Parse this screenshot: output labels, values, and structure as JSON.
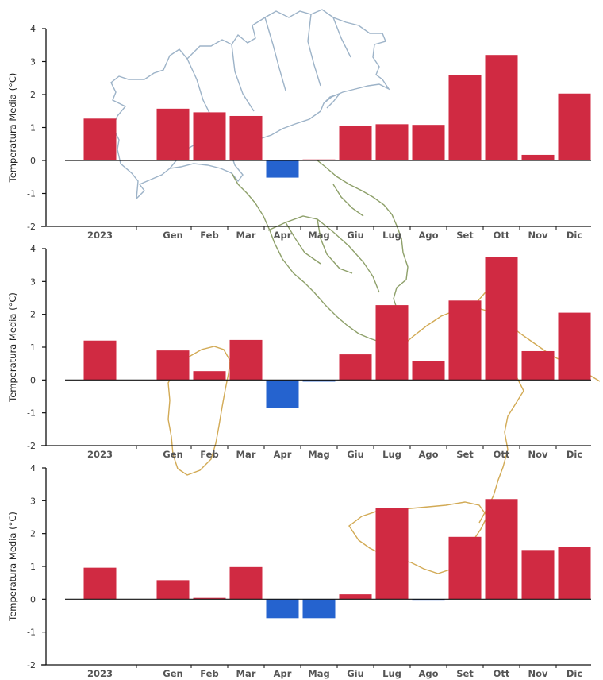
{
  "colors": {
    "positive": "#d02a42",
    "negative": "#2563cf",
    "map_north": "#9db3c8",
    "map_center": "#8ea06a",
    "map_south": "#d2aa55"
  },
  "chart_data": [
    {
      "type": "bar",
      "categories": [
        "2023",
        "Gen",
        "Feb",
        "Mar",
        "Apr",
        "Mag",
        "Giu",
        "Lug",
        "Ago",
        "Set",
        "Ott",
        "Nov",
        "Dic"
      ],
      "values": [
        1.27,
        1.57,
        1.46,
        1.35,
        -0.52,
        0.03,
        1.05,
        1.1,
        1.08,
        2.6,
        3.2,
        0.17,
        2.03
      ],
      "ylabel": "Temperatura Media (°C)",
      "ylim": [
        -2,
        4
      ],
      "yticks": [
        "-2",
        "-1",
        "0",
        "1",
        "2",
        "3",
        "4"
      ],
      "grid": false
    },
    {
      "type": "bar",
      "categories": [
        "2023",
        "Gen",
        "Feb",
        "Mar",
        "Apr",
        "Mag",
        "Giu",
        "Lug",
        "Ago",
        "Set",
        "Ott",
        "Nov",
        "Dic"
      ],
      "values": [
        1.2,
        0.9,
        0.27,
        1.22,
        -0.85,
        -0.05,
        0.78,
        2.28,
        0.57,
        2.42,
        3.75,
        0.88,
        2.05
      ],
      "ylabel": "Temperatura Media (°C)",
      "ylim": [
        -2,
        4
      ],
      "yticks": [
        "-2",
        "-1",
        "0",
        "1",
        "2",
        "3",
        "4"
      ],
      "grid": false
    },
    {
      "type": "bar",
      "categories": [
        "2023",
        "Gen",
        "Feb",
        "Mar",
        "Apr",
        "Mag",
        "Giu",
        "Lug",
        "Ago",
        "Set",
        "Ott",
        "Nov",
        "Dic"
      ],
      "values": [
        0.96,
        0.58,
        0.04,
        0.98,
        -0.58,
        -0.58,
        0.15,
        2.77,
        -0.02,
        1.9,
        3.05,
        1.5,
        1.6
      ],
      "ylabel": "Temperatura Media (°C)",
      "ylim": [
        -2,
        4
      ],
      "yticks": [
        "-2",
        "-1",
        "0",
        "1",
        "2",
        "3",
        "4"
      ],
      "grid": false
    }
  ]
}
